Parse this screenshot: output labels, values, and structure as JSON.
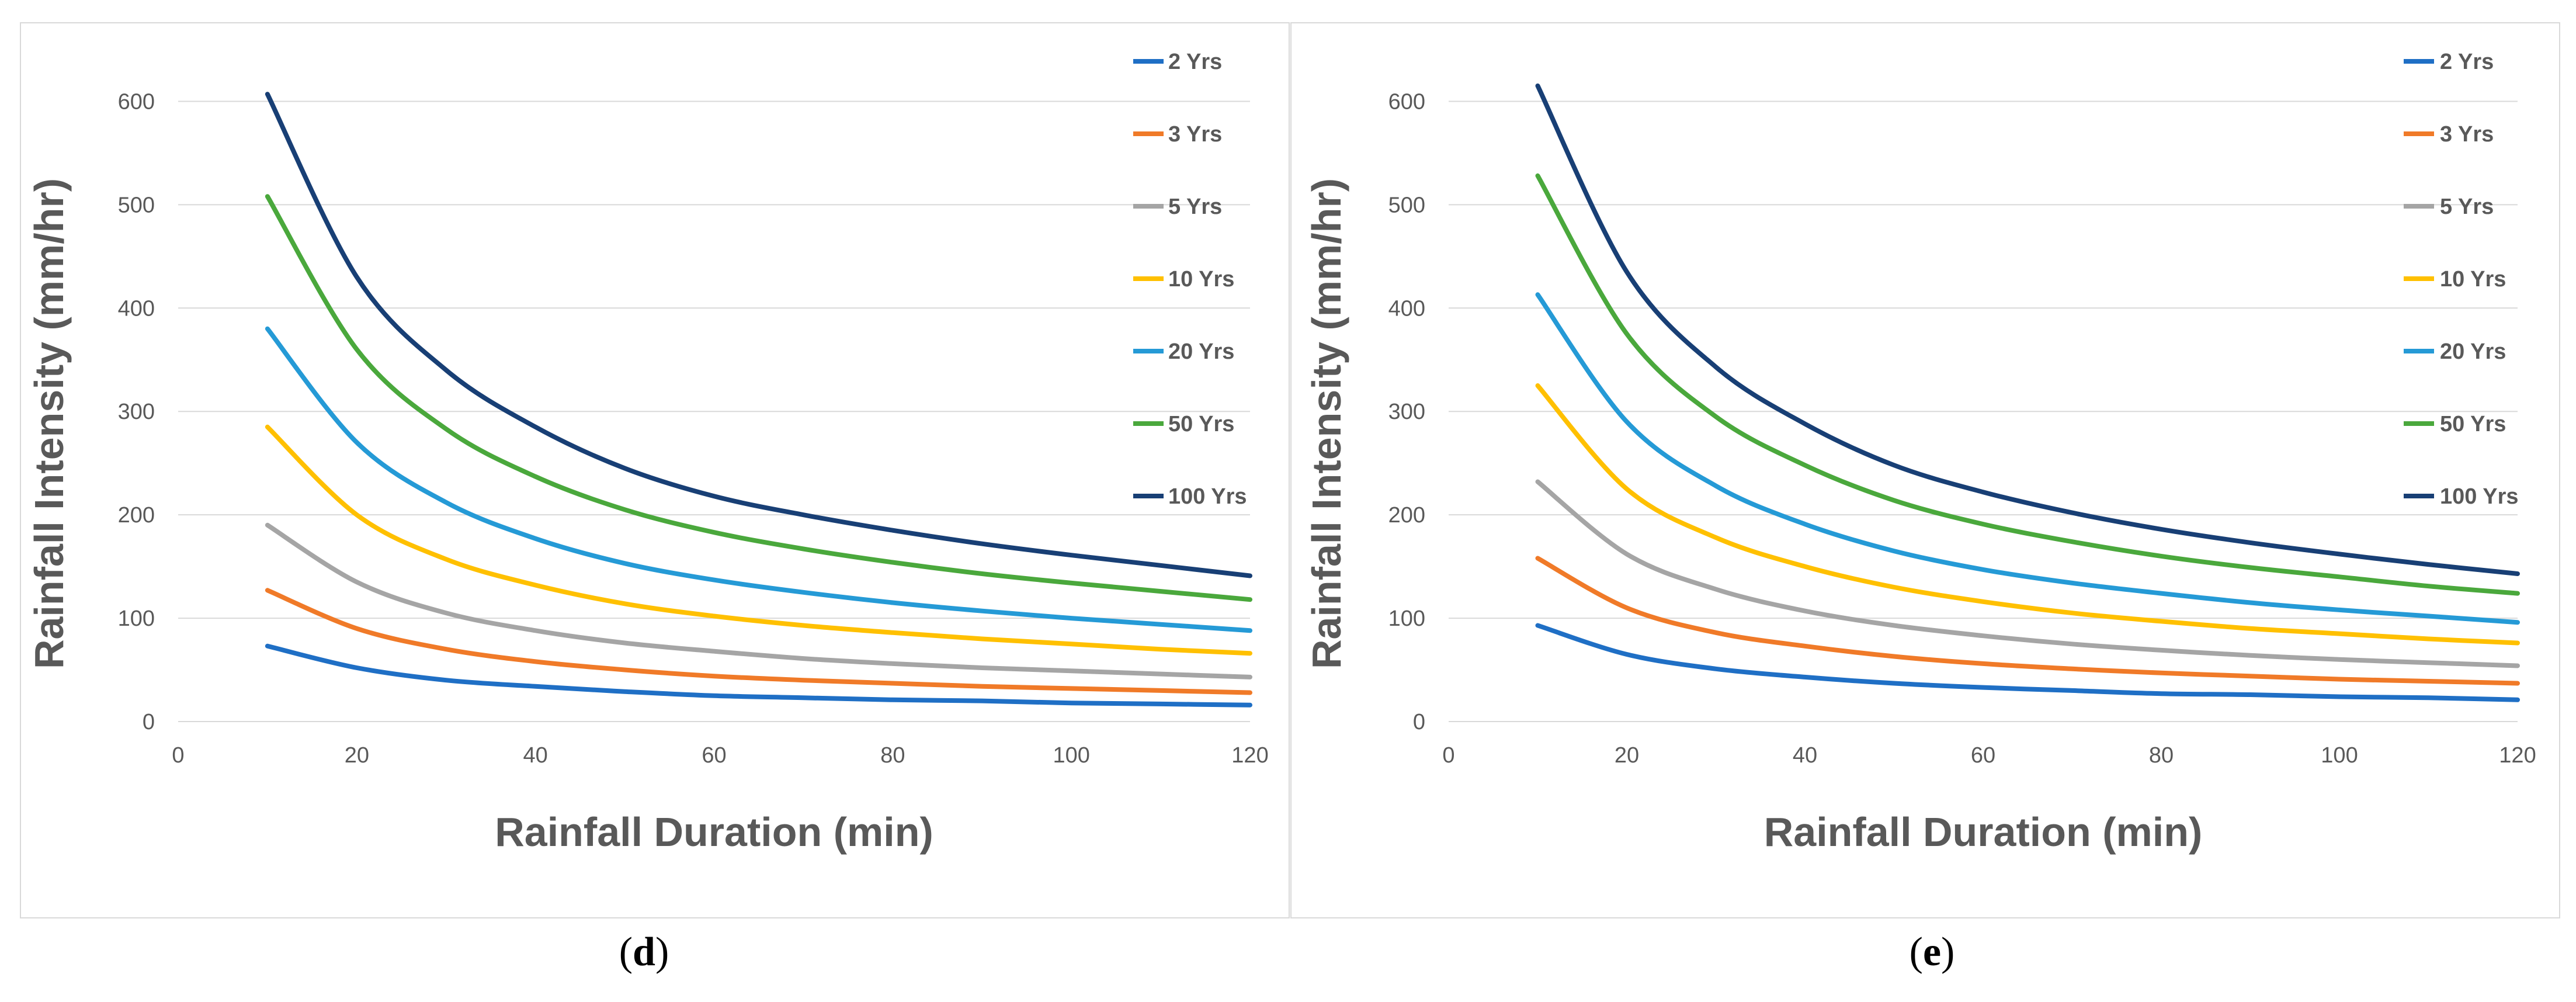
{
  "series_colors": [
    "#1f6fc5",
    "#f07a28",
    "#a5a5a5",
    "#ffc000",
    "#259ad6",
    "#4aa83c",
    "#183f75"
  ],
  "chart_data": [
    {
      "type": "line",
      "panel_label": "d",
      "title": "",
      "xlabel": "Rainfall Duration (min)",
      "ylabel": "Rainfall Intensity (mm/hr)",
      "xlim": [
        0,
        120
      ],
      "ylim": [
        0,
        650
      ],
      "xticks": [
        0,
        20,
        40,
        60,
        80,
        100,
        120
      ],
      "yticks": [
        0,
        100,
        200,
        300,
        400,
        500,
        600
      ],
      "grid": true,
      "legend_position": "right",
      "x": [
        10,
        20,
        30,
        40,
        50,
        60,
        70,
        80,
        90,
        100,
        110,
        120
      ],
      "series": [
        {
          "name": "2 Yrs",
          "values": [
            73,
            52,
            40,
            34,
            29,
            25,
            23,
            21,
            20,
            18,
            17,
            16
          ]
        },
        {
          "name": "3 Yrs",
          "values": [
            127,
            90,
            70,
            58,
            50,
            44,
            40,
            37,
            34,
            32,
            30,
            28
          ]
        },
        {
          "name": "5 Yrs",
          "values": [
            190,
            135,
            105,
            88,
            76,
            68,
            61,
            56,
            52,
            49,
            46,
            43
          ]
        },
        {
          "name": "10 Yrs",
          "values": [
            285,
            200,
            157,
            132,
            114,
            102,
            93,
            86,
            80,
            75,
            70,
            66
          ]
        },
        {
          "name": "20 Yrs",
          "values": [
            380,
            270,
            212,
            177,
            153,
            137,
            125,
            115,
            107,
            100,
            94,
            88
          ]
        },
        {
          "name": "50 Yrs",
          "values": [
            508,
            360,
            283,
            237,
            205,
            183,
            167,
            154,
            143,
            134,
            126,
            118
          ]
        },
        {
          "name": "100 Yrs",
          "values": [
            607,
            430,
            340,
            285,
            245,
            218,
            200,
            185,
            172,
            161,
            151,
            141
          ]
        }
      ]
    },
    {
      "type": "line",
      "panel_label": "e",
      "title": "",
      "xlabel": "Rainfall Duration (min)",
      "ylabel": "Rainfall Intensity (mm/hr)",
      "xlim": [
        0,
        120
      ],
      "ylim": [
        0,
        650
      ],
      "xticks": [
        0,
        20,
        40,
        60,
        80,
        100,
        120
      ],
      "yticks": [
        0,
        100,
        200,
        300,
        400,
        500,
        600
      ],
      "grid": true,
      "legend_position": "right",
      "x": [
        10,
        20,
        30,
        40,
        50,
        60,
        70,
        80,
        90,
        100,
        110,
        120
      ],
      "series": [
        {
          "name": "2 Yrs",
          "values": [
            93,
            65,
            51,
            43,
            37,
            33,
            30,
            27,
            26,
            24,
            23,
            21
          ]
        },
        {
          "name": "3 Yrs",
          "values": [
            158,
            110,
            86,
            73,
            63,
            56,
            51,
            47,
            44,
            41,
            39,
            37
          ]
        },
        {
          "name": "5 Yrs",
          "values": [
            232,
            162,
            128,
            107,
            93,
            83,
            75,
            69,
            64,
            60,
            57,
            54
          ]
        },
        {
          "name": "10 Yrs",
          "values": [
            325,
            225,
            178,
            150,
            130,
            116,
            105,
            97,
            90,
            85,
            80,
            76
          ]
        },
        {
          "name": "20 Yrs",
          "values": [
            413,
            290,
            228,
            191,
            165,
            147,
            134,
            124,
            115,
            108,
            102,
            96
          ]
        },
        {
          "name": "50 Yrs",
          "values": [
            528,
            375,
            295,
            248,
            214,
            191,
            174,
            160,
            149,
            140,
            131,
            124
          ]
        },
        {
          "name": "100 Yrs",
          "values": [
            615,
            435,
            343,
            288,
            248,
            222,
            202,
            186,
            173,
            162,
            152,
            143
          ]
        }
      ]
    }
  ]
}
